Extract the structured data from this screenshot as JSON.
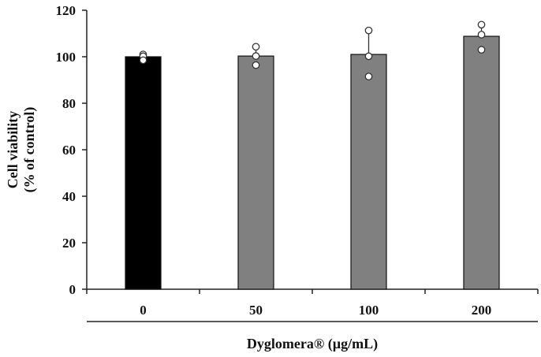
{
  "chart_data": {
    "type": "bar",
    "categories": [
      "0",
      "50",
      "100",
      "200"
    ],
    "values": [
      100,
      100.3,
      101,
      108.8
    ],
    "error_upper": [
      101,
      104,
      111,
      114
    ],
    "points": [
      [
        101,
        100.2,
        98.5
      ],
      [
        104.3,
        100.3,
        96.4
      ],
      [
        111.3,
        100.2,
        91.5
      ],
      [
        113.8,
        109.5,
        103
      ]
    ],
    "bar_colors": [
      "#000000",
      "#808080",
      "#808080",
      "#808080"
    ],
    "ylabel_line1": "Cell viability",
    "ylabel_line2": "(% of control)",
    "xlabel": "Dyglomera® (µg/mL)",
    "ylim": [
      0,
      120
    ],
    "yticks": [
      "0",
      "20",
      "40",
      "60",
      "80",
      "100",
      "120"
    ],
    "grid": false
  }
}
